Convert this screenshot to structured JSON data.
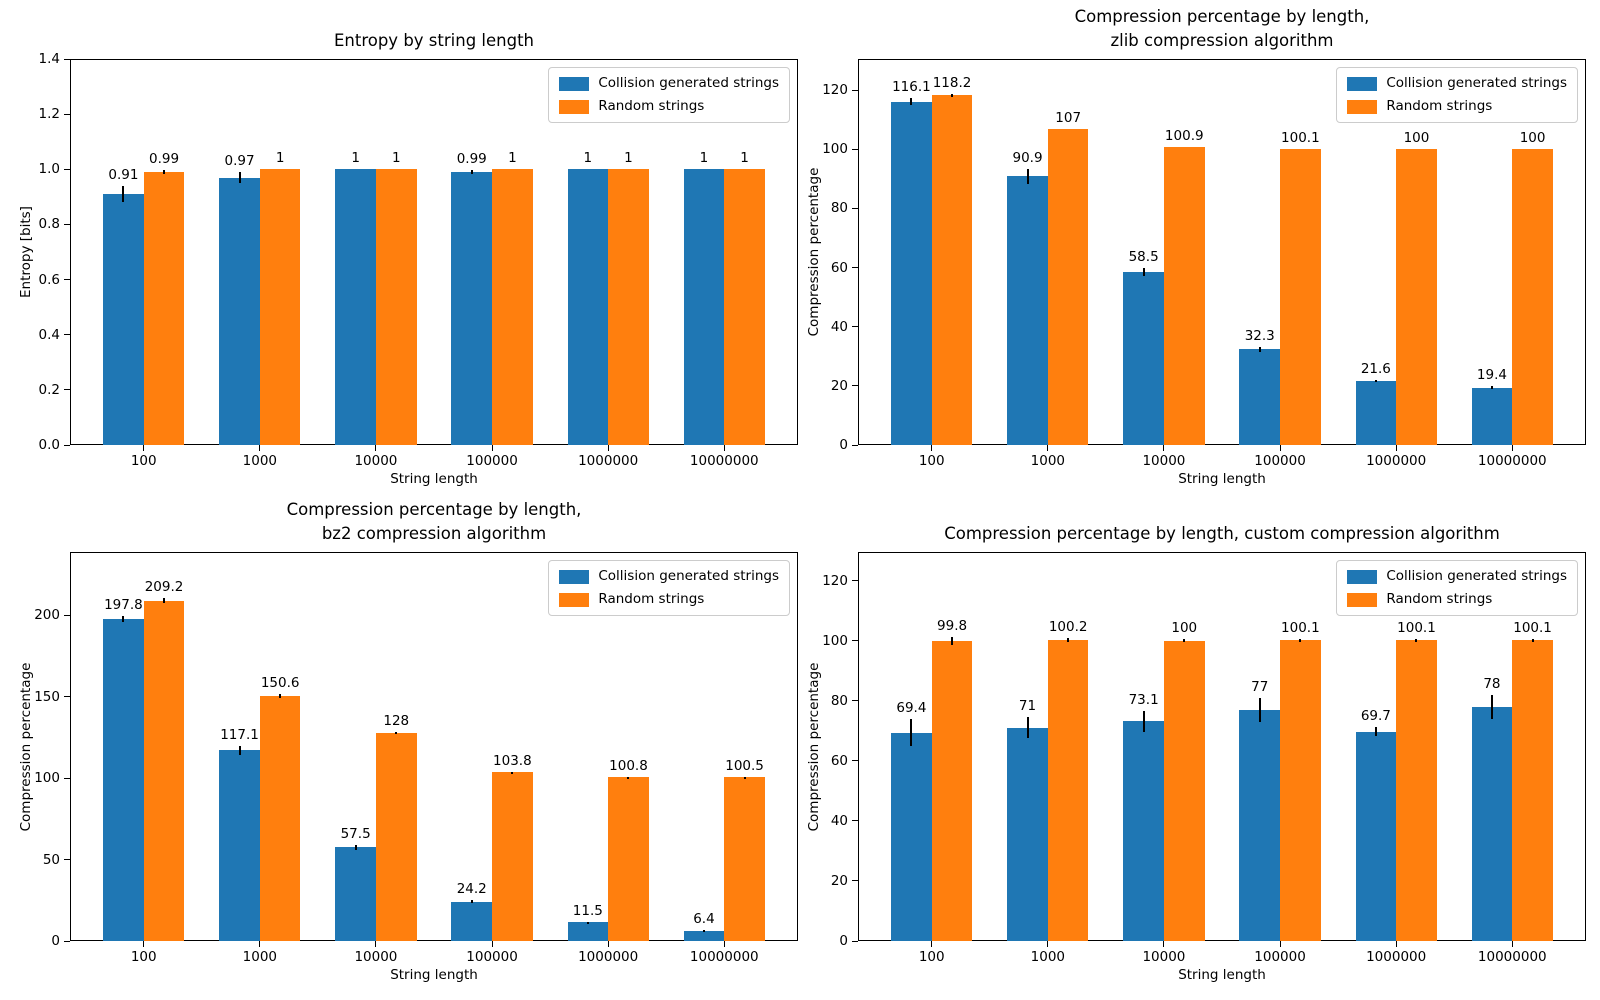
{
  "figure": {
    "background": "#ffffff"
  },
  "colors": {
    "collision": "#1f77b4",
    "random": "#ff7f0e",
    "error_bar": "#000000"
  },
  "legend": {
    "items": [
      {
        "label": "Collision generated strings",
        "color": "#1f77b4"
      },
      {
        "label": "Random strings",
        "color": "#ff7f0e"
      }
    ]
  },
  "chart_data": [
    {
      "type": "bar",
      "id": "entropy",
      "title": "Entropy by string length",
      "title_lines": [
        "Entropy by string length"
      ],
      "xlabel": "String length",
      "ylabel": "Entropy [bits]",
      "categories": [
        "100",
        "1000",
        "10000",
        "100000",
        "1000000",
        "10000000"
      ],
      "ylim": [
        0,
        1.4
      ],
      "yticks": [
        0.0,
        0.2,
        0.4,
        0.6,
        0.8,
        1.0,
        1.2,
        1.4
      ],
      "ytick_labels": [
        "0.0",
        "0.2",
        "0.4",
        "0.6",
        "0.8",
        "1.0",
        "1.2",
        "1.4"
      ],
      "grid": false,
      "legend_position": "upper right",
      "series": [
        {
          "name": "Collision generated strings",
          "color": "#1f77b4",
          "values": [
            0.91,
            0.97,
            1,
            0.99,
            1,
            1
          ],
          "errors": [
            0.03,
            0.02,
            0,
            0.006,
            0,
            0
          ],
          "labels": [
            "0.91",
            "0.97",
            "1",
            "0.99",
            "1",
            "1"
          ]
        },
        {
          "name": "Random strings",
          "color": "#ff7f0e",
          "values": [
            0.99,
            1,
            1,
            1,
            1,
            1
          ],
          "errors": [
            0.006,
            0,
            0,
            0,
            0,
            0
          ],
          "labels": [
            "0.99",
            "1",
            "1",
            "1",
            "1",
            "1"
          ]
        }
      ]
    },
    {
      "type": "bar",
      "id": "zlib",
      "title": "Compression percentage by length, zlib compression algorithm",
      "title_lines": [
        "Compression percentage by length,",
        "zlib compression algorithm"
      ],
      "xlabel": "String length",
      "ylabel": "Compression percentage",
      "categories": [
        "100",
        "1000",
        "10000",
        "100000",
        "1000000",
        "10000000"
      ],
      "ylim": [
        0,
        130.5
      ],
      "yticks": [
        0,
        20,
        40,
        60,
        80,
        100,
        120
      ],
      "ytick_labels": [
        "0",
        "20",
        "40",
        "60",
        "80",
        "100",
        "120"
      ],
      "grid": false,
      "legend_position": "upper right",
      "series": [
        {
          "name": "Collision generated strings",
          "color": "#1f77b4",
          "values": [
            116.1,
            90.9,
            58.5,
            32.3,
            21.6,
            19.4
          ],
          "errors": [
            1.2,
            2.5,
            1.5,
            1.0,
            0.4,
            0.5
          ],
          "labels": [
            "116.1",
            "90.9",
            "58.5",
            "32.3",
            "21.6",
            "19.4"
          ]
        },
        {
          "name": "Random strings",
          "color": "#ff7f0e",
          "values": [
            118.2,
            107,
            100.9,
            100.1,
            100,
            100
          ],
          "errors": [
            0.6,
            0,
            0,
            0,
            0,
            0
          ],
          "labels": [
            "118.2",
            "107",
            "100.9",
            "100.1",
            "100",
            "100"
          ]
        }
      ]
    },
    {
      "type": "bar",
      "id": "bz2",
      "title": "Compression percentage by length, bz2 compression algorithm",
      "title_lines": [
        "Compression percentage by length,",
        "bz2 compression algorithm"
      ],
      "xlabel": "String length",
      "ylabel": "Compression percentage",
      "categories": [
        "100",
        "1000",
        "10000",
        "100000",
        "1000000",
        "10000000"
      ],
      "ylim": [
        0,
        239
      ],
      "yticks": [
        0,
        50,
        100,
        150,
        200
      ],
      "ytick_labels": [
        "0",
        "50",
        "100",
        "150",
        "200"
      ],
      "grid": false,
      "legend_position": "upper right",
      "series": [
        {
          "name": "Collision generated strings",
          "color": "#1f77b4",
          "values": [
            197.8,
            117.1,
            57.5,
            24.2,
            11.5,
            6.4
          ],
          "errors": [
            2,
            3,
            1.5,
            1,
            0.3,
            0.2
          ],
          "labels": [
            "197.8",
            "117.1",
            "57.5",
            "24.2",
            "11.5",
            "6.4"
          ]
        },
        {
          "name": "Random strings",
          "color": "#ff7f0e",
          "values": [
            209.2,
            150.6,
            128,
            103.8,
            100.8,
            100.5
          ],
          "errors": [
            1.5,
            1,
            0.4,
            0.3,
            0.2,
            0.2
          ],
          "labels": [
            "209.2",
            "150.6",
            "128",
            "103.8",
            "100.8",
            "100.5"
          ]
        }
      ]
    },
    {
      "type": "bar",
      "id": "custom",
      "title": "Compression percentage by length, custom compression algorithm",
      "title_lines": [
        "Compression percentage by length, custom compression algorithm"
      ],
      "xlabel": "String length",
      "ylabel": "Compression percentage",
      "categories": [
        "100",
        "1000",
        "10000",
        "100000",
        "1000000",
        "10000000"
      ],
      "ylim": [
        0,
        129.5
      ],
      "yticks": [
        0,
        20,
        40,
        60,
        80,
        100,
        120
      ],
      "ytick_labels": [
        "0",
        "20",
        "40",
        "60",
        "80",
        "100",
        "120"
      ],
      "grid": false,
      "legend_position": "upper right",
      "series": [
        {
          "name": "Collision generated strings",
          "color": "#1f77b4",
          "values": [
            69.4,
            71,
            73.1,
            77,
            69.7,
            78
          ],
          "errors": [
            4.5,
            3.5,
            3.5,
            4,
            1.5,
            4
          ],
          "labels": [
            "69.4",
            "71",
            "73.1",
            "77",
            "69.7",
            "78"
          ]
        },
        {
          "name": "Random strings",
          "color": "#ff7f0e",
          "values": [
            99.8,
            100.2,
            100,
            100.1,
            100.1,
            100.1
          ],
          "errors": [
            1.3,
            0.6,
            0.5,
            0.5,
            0.4,
            0.4
          ],
          "labels": [
            "99.8",
            "100.2",
            "100",
            "100.1",
            "100.1",
            "100.1"
          ]
        }
      ]
    }
  ]
}
